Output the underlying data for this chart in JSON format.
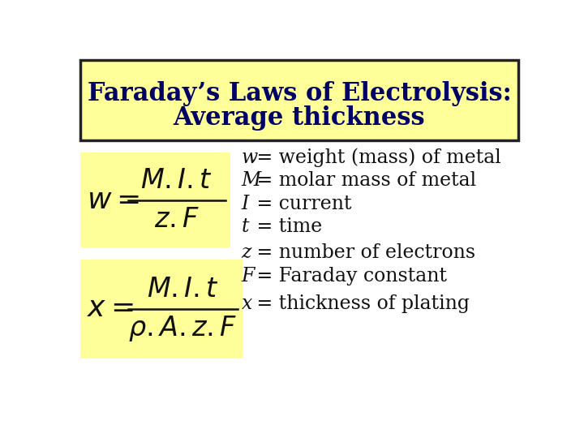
{
  "title_line1": "Faraday’s Laws of Electrolysis:",
  "title_line2": "Average thickness",
  "title_bg": "#ffff99",
  "title_border": "#222222",
  "formula_bg": "#ffff99",
  "bg_color": "#ffffff",
  "title_text_color": "#000066",
  "body_text_color": "#111111",
  "definitions": [
    [
      "w",
      " = weight (mass) of metal"
    ],
    [
      "M",
      " = molar mass of metal"
    ],
    [
      "I",
      " = current"
    ],
    [
      "t",
      " = time"
    ],
    [
      "z",
      " = number of electrons"
    ],
    [
      "F",
      " = Faraday constant"
    ],
    [
      "x",
      " = thickness of plating"
    ]
  ],
  "title_fontsize": 22,
  "formula_fontsize": 22,
  "def_fontsize": 17
}
